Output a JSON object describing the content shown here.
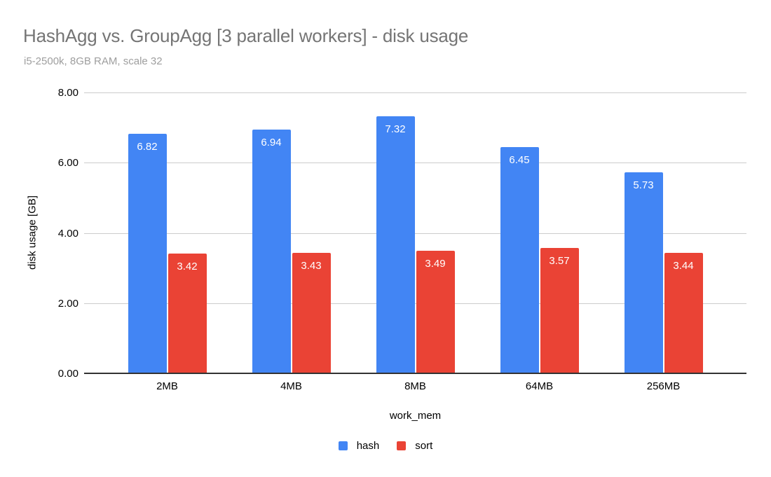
{
  "chart_data": {
    "type": "bar",
    "title": "HashAgg vs. GroupAgg [3 parallel workers] - disk usage",
    "subtitle": "i5-2500k, 8GB RAM, scale 32",
    "xlabel": "work_mem",
    "ylabel": "disk usage [GB]",
    "categories": [
      "2MB",
      "4MB",
      "8MB",
      "64MB",
      "256MB"
    ],
    "series": [
      {
        "name": "hash",
        "color": "#4285F4",
        "values": [
          6.82,
          6.94,
          7.32,
          6.45,
          5.73
        ]
      },
      {
        "name": "sort",
        "color": "#EA4335",
        "values": [
          3.42,
          3.43,
          3.49,
          3.57,
          3.44
        ]
      }
    ],
    "ylim": [
      0,
      8
    ],
    "yticks": [
      "0.00",
      "2.00",
      "4.00",
      "6.00",
      "8.00"
    ],
    "grid": true,
    "legend_position": "bottom",
    "value_labels": true,
    "value_label_decimals": 2
  },
  "style": {
    "background": "#ffffff",
    "title_color": "#757575",
    "subtitle_color": "#9e9e9e",
    "axis_text_color": "#000000",
    "gridline_color": "#cccccc",
    "baseline_color": "#333333",
    "value_label_color": "#ffffff"
  }
}
